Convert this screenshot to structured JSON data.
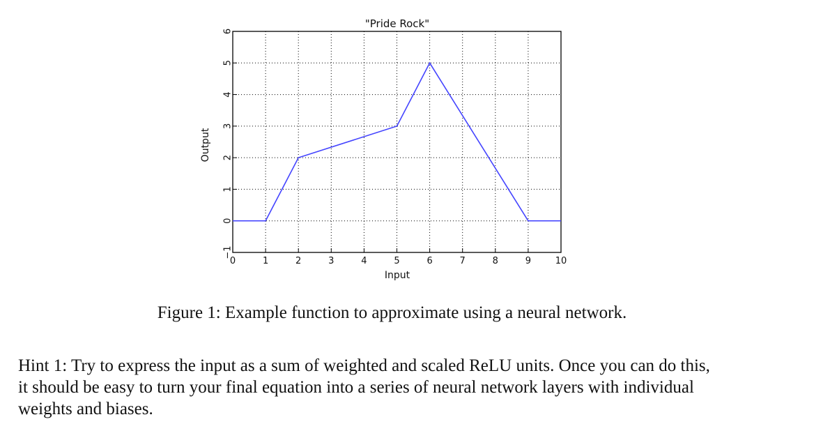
{
  "chart_data": {
    "type": "line",
    "title": "\"Pride Rock\"",
    "xlabel": "Input",
    "ylabel": "Output",
    "xlim": [
      0,
      10
    ],
    "ylim": [
      -1,
      6
    ],
    "xticks": [
      "0",
      "1",
      "2",
      "3",
      "4",
      "5",
      "6",
      "7",
      "8",
      "9",
      "10"
    ],
    "yticks": [
      "−1",
      "0",
      "1",
      "2",
      "3",
      "4",
      "5",
      "6"
    ],
    "grid": true,
    "series": [
      {
        "color": "#4444ff",
        "x": [
          0,
          1,
          2,
          5,
          6,
          9,
          10
        ],
        "y": [
          0,
          0,
          2,
          3,
          5,
          0,
          0
        ]
      }
    ]
  },
  "caption": "Figure 1: Example function to approximate using a neural network.",
  "hint": "Hint 1: Try to express the input as a sum of weighted and scaled ReLU units. Once you can do this,\nit should be easy to turn your final equation into a series of neural network layers with individual\nweights and biases."
}
